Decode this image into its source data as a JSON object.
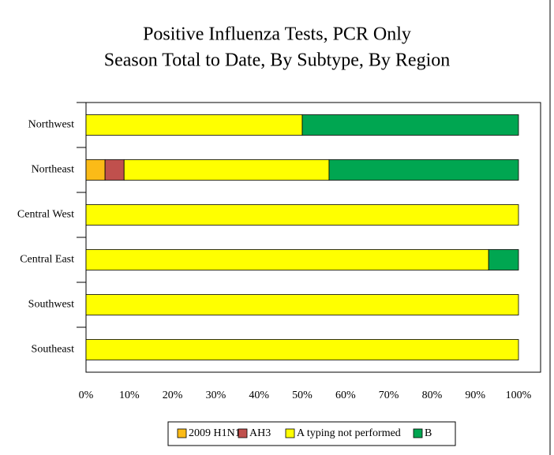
{
  "chart_data": {
    "type": "stacked-bar-horizontal",
    "title": "Positive Influenza  Tests, PCR Only",
    "subtitle": "Season Total to Date,  By Subtype, By Region",
    "categories": [
      "Northwest",
      "Northeast",
      "Central West",
      "Central East",
      "Southwest",
      "Southeast"
    ],
    "series": [
      {
        "name": "2009 H1N1",
        "color": "#fbbb17",
        "values": [
          0,
          4.4,
          0,
          0,
          0,
          0
        ]
      },
      {
        "name": "AH3",
        "color": "#c0504d",
        "values": [
          0,
          4.4,
          0,
          0,
          0,
          0
        ]
      },
      {
        "name": "A typing not performed",
        "color": "#ffff00",
        "values": [
          50,
          47.4,
          100,
          93.1,
          100,
          100
        ]
      },
      {
        "name": "B",
        "color": "#00a651",
        "values": [
          50,
          43.8,
          0,
          6.9,
          0,
          0
        ]
      }
    ],
    "xlim": [
      0,
      100
    ],
    "xticks": [
      {
        "value": 0,
        "label": "0%"
      },
      {
        "value": 10,
        "label": "10%"
      },
      {
        "value": 20,
        "label": "20%"
      },
      {
        "value": 30,
        "label": "30%"
      },
      {
        "value": 40,
        "label": "40%"
      },
      {
        "value": 50,
        "label": "50%"
      },
      {
        "value": 60,
        "label": "60%"
      },
      {
        "value": 70,
        "label": "70%"
      },
      {
        "value": 80,
        "label": "80%"
      },
      {
        "value": 90,
        "label": "90%"
      },
      {
        "value": 100,
        "label": "100%"
      }
    ],
    "legend": "bottom"
  }
}
